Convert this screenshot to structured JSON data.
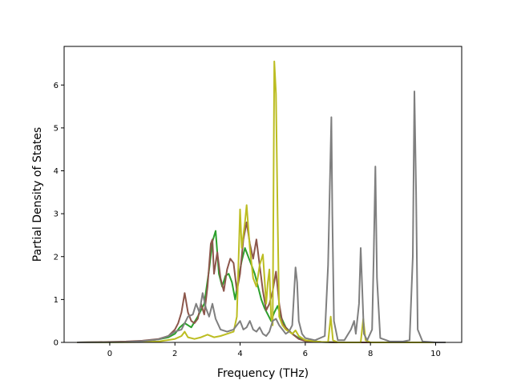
{
  "chart_data": {
    "type": "line",
    "title": "",
    "xlabel": "Frequency (THz)",
    "ylabel": "Partial Density of States",
    "xlim": [
      -1.4,
      10.8
    ],
    "ylim": [
      0,
      6.9
    ],
    "xticks": [
      0,
      2,
      4,
      6,
      8,
      10
    ],
    "yticks": [
      0,
      1,
      2,
      3,
      4,
      5,
      6
    ],
    "xtick_labels": [
      "0",
      "2",
      "4",
      "6",
      "8",
      "10"
    ],
    "ytick_labels": [
      "0",
      "1",
      "2",
      "3",
      "4",
      "5",
      "6"
    ],
    "grid": false,
    "legend": false,
    "series": [
      {
        "color": "#2ca02c",
        "points": [
          [
            -1.0,
            0
          ],
          [
            0.5,
            0.01
          ],
          [
            1.0,
            0.03
          ],
          [
            1.5,
            0.07
          ],
          [
            1.8,
            0.12
          ],
          [
            2.0,
            0.2
          ],
          [
            2.15,
            0.35
          ],
          [
            2.3,
            0.45
          ],
          [
            2.5,
            0.35
          ],
          [
            2.7,
            0.6
          ],
          [
            2.9,
            0.9
          ],
          [
            3.05,
            1.7
          ],
          [
            3.15,
            2.35
          ],
          [
            3.25,
            2.6
          ],
          [
            3.35,
            1.6
          ],
          [
            3.45,
            1.3
          ],
          [
            3.55,
            1.55
          ],
          [
            3.65,
            1.6
          ],
          [
            3.75,
            1.4
          ],
          [
            3.85,
            1.0
          ],
          [
            3.95,
            1.5
          ],
          [
            4.05,
            1.9
          ],
          [
            4.15,
            2.2
          ],
          [
            4.25,
            2.0
          ],
          [
            4.35,
            1.8
          ],
          [
            4.45,
            1.6
          ],
          [
            4.55,
            1.3
          ],
          [
            4.65,
            1.0
          ],
          [
            4.75,
            0.8
          ],
          [
            4.85,
            0.65
          ],
          [
            4.95,
            0.5
          ],
          [
            5.05,
            0.7
          ],
          [
            5.15,
            0.85
          ],
          [
            5.25,
            0.6
          ],
          [
            5.4,
            0.35
          ],
          [
            5.6,
            0.2
          ],
          [
            5.8,
            0.1
          ],
          [
            6.0,
            0.05
          ],
          [
            6.5,
            0.01
          ],
          [
            7.0,
            0
          ],
          [
            8.0,
            0
          ],
          [
            10.3,
            0
          ]
        ]
      },
      {
        "color": "#8c564b",
        "points": [
          [
            -1.0,
            0
          ],
          [
            0.5,
            0.02
          ],
          [
            1.0,
            0.04
          ],
          [
            1.5,
            0.08
          ],
          [
            1.8,
            0.15
          ],
          [
            2.0,
            0.3
          ],
          [
            2.1,
            0.45
          ],
          [
            2.2,
            0.7
          ],
          [
            2.3,
            1.15
          ],
          [
            2.4,
            0.7
          ],
          [
            2.5,
            0.5
          ],
          [
            2.6,
            0.45
          ],
          [
            2.7,
            0.55
          ],
          [
            2.8,
            0.9
          ],
          [
            2.9,
            0.65
          ],
          [
            3.0,
            1.3
          ],
          [
            3.1,
            2.3
          ],
          [
            3.15,
            2.4
          ],
          [
            3.2,
            1.6
          ],
          [
            3.3,
            2.1
          ],
          [
            3.4,
            1.5
          ],
          [
            3.5,
            1.2
          ],
          [
            3.6,
            1.7
          ],
          [
            3.7,
            1.95
          ],
          [
            3.8,
            1.85
          ],
          [
            3.9,
            1.2
          ],
          [
            4.0,
            1.6
          ],
          [
            4.1,
            2.4
          ],
          [
            4.2,
            2.8
          ],
          [
            4.3,
            2.3
          ],
          [
            4.4,
            1.95
          ],
          [
            4.5,
            2.4
          ],
          [
            4.6,
            1.8
          ],
          [
            4.7,
            1.2
          ],
          [
            4.8,
            0.75
          ],
          [
            4.9,
            0.9
          ],
          [
            5.0,
            1.2
          ],
          [
            5.1,
            1.65
          ],
          [
            5.2,
            0.9
          ],
          [
            5.3,
            0.45
          ],
          [
            5.45,
            0.3
          ],
          [
            5.6,
            0.2
          ],
          [
            5.8,
            0.08
          ],
          [
            6.0,
            0.03
          ],
          [
            6.5,
            0.01
          ],
          [
            7.0,
            0
          ],
          [
            8.0,
            0
          ],
          [
            10.3,
            0
          ]
        ]
      },
      {
        "color": "#bcbd22",
        "points": [
          [
            -1.0,
            0
          ],
          [
            0.5,
            0.005
          ],
          [
            1.0,
            0.01
          ],
          [
            1.5,
            0.02
          ],
          [
            2.0,
            0.08
          ],
          [
            2.2,
            0.15
          ],
          [
            2.3,
            0.25
          ],
          [
            2.4,
            0.12
          ],
          [
            2.6,
            0.08
          ],
          [
            2.8,
            0.12
          ],
          [
            3.0,
            0.18
          ],
          [
            3.2,
            0.12
          ],
          [
            3.4,
            0.15
          ],
          [
            3.6,
            0.2
          ],
          [
            3.8,
            0.25
          ],
          [
            3.9,
            0.6
          ],
          [
            4.0,
            3.1
          ],
          [
            4.05,
            2.2
          ],
          [
            4.15,
            2.8
          ],
          [
            4.2,
            3.2
          ],
          [
            4.3,
            2.2
          ],
          [
            4.4,
            1.5
          ],
          [
            4.5,
            1.3
          ],
          [
            4.6,
            1.8
          ],
          [
            4.7,
            2.05
          ],
          [
            4.8,
            0.9
          ],
          [
            4.85,
            1.4
          ],
          [
            4.9,
            1.7
          ],
          [
            4.95,
            0.6
          ],
          [
            5.0,
            0.4
          ],
          [
            5.05,
            6.55
          ],
          [
            5.1,
            5.8
          ],
          [
            5.15,
            3.0
          ],
          [
            5.2,
            0.6
          ],
          [
            5.3,
            0.4
          ],
          [
            5.4,
            0.3
          ],
          [
            5.5,
            0.25
          ],
          [
            5.6,
            0.2
          ],
          [
            5.7,
            0.28
          ],
          [
            5.8,
            0.15
          ],
          [
            6.0,
            0.05
          ],
          [
            6.5,
            0.01
          ],
          [
            6.7,
            0.01
          ],
          [
            6.78,
            0.6
          ],
          [
            6.85,
            0.05
          ],
          [
            7.0,
            0
          ],
          [
            7.7,
            0
          ],
          [
            7.78,
            0.55
          ],
          [
            7.85,
            0.05
          ],
          [
            8.0,
            0
          ],
          [
            10.3,
            0
          ]
        ]
      },
      {
        "color": "#7f7f7f",
        "points": [
          [
            -1.0,
            0
          ],
          [
            0.5,
            0.01
          ],
          [
            1.0,
            0.03
          ],
          [
            1.5,
            0.07
          ],
          [
            1.8,
            0.15
          ],
          [
            2.0,
            0.25
          ],
          [
            2.2,
            0.3
          ],
          [
            2.4,
            0.6
          ],
          [
            2.55,
            0.65
          ],
          [
            2.65,
            0.9
          ],
          [
            2.75,
            0.7
          ],
          [
            2.85,
            1.15
          ],
          [
            2.95,
            0.8
          ],
          [
            3.05,
            0.6
          ],
          [
            3.15,
            0.9
          ],
          [
            3.25,
            0.55
          ],
          [
            3.4,
            0.3
          ],
          [
            3.6,
            0.25
          ],
          [
            3.8,
            0.3
          ],
          [
            4.0,
            0.5
          ],
          [
            4.1,
            0.3
          ],
          [
            4.2,
            0.35
          ],
          [
            4.3,
            0.5
          ],
          [
            4.4,
            0.3
          ],
          [
            4.5,
            0.25
          ],
          [
            4.6,
            0.35
          ],
          [
            4.7,
            0.2
          ],
          [
            4.8,
            0.15
          ],
          [
            4.9,
            0.25
          ],
          [
            5.0,
            0.5
          ],
          [
            5.1,
            0.55
          ],
          [
            5.2,
            0.4
          ],
          [
            5.3,
            0.3
          ],
          [
            5.4,
            0.2
          ],
          [
            5.5,
            0.25
          ],
          [
            5.6,
            0.4
          ],
          [
            5.7,
            1.75
          ],
          [
            5.75,
            1.4
          ],
          [
            5.8,
            0.5
          ],
          [
            5.9,
            0.2
          ],
          [
            6.0,
            0.1
          ],
          [
            6.3,
            0.05
          ],
          [
            6.6,
            0.15
          ],
          [
            6.7,
            1.8
          ],
          [
            6.75,
            3.5
          ],
          [
            6.8,
            5.25
          ],
          [
            6.83,
            3.0
          ],
          [
            6.88,
            0.5
          ],
          [
            7.0,
            0.05
          ],
          [
            7.2,
            0.05
          ],
          [
            7.4,
            0.3
          ],
          [
            7.5,
            0.5
          ],
          [
            7.55,
            0.2
          ],
          [
            7.65,
            0.9
          ],
          [
            7.7,
            2.2
          ],
          [
            7.75,
            1.2
          ],
          [
            7.8,
            0.2
          ],
          [
            7.9,
            0.05
          ],
          [
            8.05,
            0.3
          ],
          [
            8.1,
            2.0
          ],
          [
            8.15,
            4.1
          ],
          [
            8.2,
            1.5
          ],
          [
            8.3,
            0.1
          ],
          [
            8.6,
            0.02
          ],
          [
            9.0,
            0.02
          ],
          [
            9.2,
            0.05
          ],
          [
            9.3,
            2.0
          ],
          [
            9.35,
            5.85
          ],
          [
            9.4,
            3.5
          ],
          [
            9.45,
            0.3
          ],
          [
            9.6,
            0.02
          ],
          [
            10.0,
            0
          ],
          [
            10.3,
            0
          ]
        ]
      }
    ]
  }
}
